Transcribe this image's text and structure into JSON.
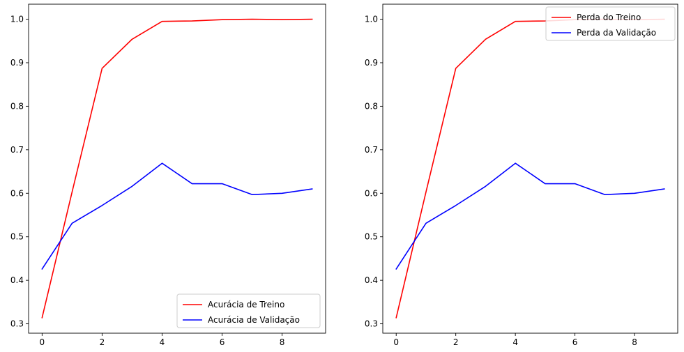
{
  "chart_data": [
    {
      "type": "line",
      "title": "",
      "xlabel": "",
      "ylabel": "",
      "xlim": [
        -0.45,
        9.45
      ],
      "ylim": [
        0.2785,
        1.0345
      ],
      "x_ticks": [
        0,
        2,
        4,
        6,
        8
      ],
      "y_ticks": [
        0.3,
        0.4,
        0.5,
        0.6,
        0.7,
        0.8,
        0.9,
        1.0
      ],
      "legend_position": "bottom-right",
      "x": [
        0,
        1,
        2,
        3,
        4,
        5,
        6,
        7,
        8,
        9
      ],
      "series": [
        {
          "name": "Acurácia de Treino",
          "color": "#ff0000",
          "values": [
            0.314,
            0.603,
            0.887,
            0.954,
            0.995,
            0.996,
            0.999,
            1.0,
            0.999,
            1.0
          ]
        },
        {
          "name": "Acurácia de Validação",
          "color": "#0000ff",
          "values": [
            0.426,
            0.531,
            0.572,
            0.616,
            0.669,
            0.622,
            0.622,
            0.597,
            0.6,
            0.61
          ]
        }
      ]
    },
    {
      "type": "line",
      "title": "",
      "xlabel": "",
      "ylabel": "",
      "xlim": [
        -0.45,
        9.45
      ],
      "ylim": [
        0.2785,
        1.0345
      ],
      "x_ticks": [
        0,
        2,
        4,
        6,
        8
      ],
      "y_ticks": [
        0.3,
        0.4,
        0.5,
        0.6,
        0.7,
        0.8,
        0.9,
        1.0
      ],
      "legend_position": "top-right",
      "x": [
        0,
        1,
        2,
        3,
        4,
        5,
        6,
        7,
        8,
        9
      ],
      "series": [
        {
          "name": "Perda do Treino",
          "color": "#ff0000",
          "values": [
            0.314,
            0.603,
            0.887,
            0.954,
            0.995,
            0.996,
            0.999,
            1.0,
            0.999,
            1.0
          ]
        },
        {
          "name": "Perda da Validação",
          "color": "#0000ff",
          "values": [
            0.426,
            0.531,
            0.572,
            0.616,
            0.669,
            0.622,
            0.622,
            0.597,
            0.6,
            0.61
          ]
        }
      ]
    }
  ]
}
